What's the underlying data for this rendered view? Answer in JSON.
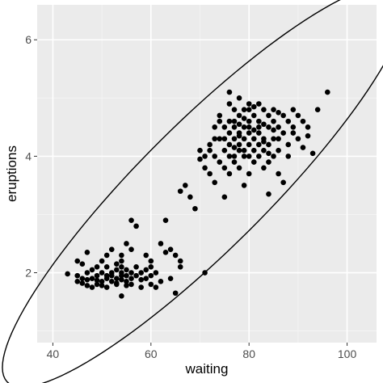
{
  "chart_data": {
    "type": "scatter",
    "xlabel": "waiting",
    "ylabel": "eruptions",
    "xlim": [
      36.8,
      106.0
    ],
    "ylim": [
      0.8,
      6.6
    ],
    "x_ticks": [
      40,
      60,
      80,
      100
    ],
    "y_ticks": [
      2,
      4,
      6
    ],
    "grid": true,
    "panel_color": "#ebebeb",
    "point_color": "#000000",
    "ellipse": {
      "type": "confidence-ellipse",
      "center": [
        70.9,
        3.49
      ],
      "cov": [
        [
          184.8,
          13.98
        ],
        [
          13.98,
          1.3
        ]
      ],
      "scale": 3.03
    },
    "points": [
      [
        43,
        1.98
      ],
      [
        45,
        2.2
      ],
      [
        45,
        1.95
      ],
      [
        45,
        1.85
      ],
      [
        46,
        1.82
      ],
      [
        46,
        1.9
      ],
      [
        46,
        2.15
      ],
      [
        47,
        1.78
      ],
      [
        47,
        2.0
      ],
      [
        47,
        2.35
      ],
      [
        47,
        1.88
      ],
      [
        48,
        1.75
      ],
      [
        48,
        2.05
      ],
      [
        48,
        1.9
      ],
      [
        49,
        1.8
      ],
      [
        49,
        2.1
      ],
      [
        49,
        1.95
      ],
      [
        49,
        1.87
      ],
      [
        50,
        1.78
      ],
      [
        50,
        2.2
      ],
      [
        50,
        2.0
      ],
      [
        50,
        1.85
      ],
      [
        51,
        2.3
      ],
      [
        51,
        1.95
      ],
      [
        51,
        1.75
      ],
      [
        51,
        2.1
      ],
      [
        51,
        1.9
      ],
      [
        52,
        2.4
      ],
      [
        52,
        1.85
      ],
      [
        52,
        2.0
      ],
      [
        52,
        1.95
      ],
      [
        53,
        1.8
      ],
      [
        53,
        2.15
      ],
      [
        53,
        1.9
      ],
      [
        53,
        2.05
      ],
      [
        53,
        1.82
      ],
      [
        54,
        1.6
      ],
      [
        54,
        2.0
      ],
      [
        54,
        2.3
      ],
      [
        54,
        1.88
      ],
      [
        54,
        1.95
      ],
      [
        54,
        2.1
      ],
      [
        54,
        2.2
      ],
      [
        55,
        2.05
      ],
      [
        55,
        1.85
      ],
      [
        55,
        2.5
      ],
      [
        55,
        1.78
      ],
      [
        55,
        1.95
      ],
      [
        56,
        2.9
      ],
      [
        56,
        2.0
      ],
      [
        56,
        1.9
      ],
      [
        56,
        2.4
      ],
      [
        56,
        1.8
      ],
      [
        57,
        2.8
      ],
      [
        57,
        1.95
      ],
      [
        57,
        2.1
      ],
      [
        58,
        1.75
      ],
      [
        58,
        2.0
      ],
      [
        58,
        1.88
      ],
      [
        59,
        2.05
      ],
      [
        59,
        1.9
      ],
      [
        59,
        2.3
      ],
      [
        60,
        1.8
      ],
      [
        60,
        1.95
      ],
      [
        60,
        2.2
      ],
      [
        60,
        2.1
      ],
      [
        61,
        1.75
      ],
      [
        61,
        2.0
      ],
      [
        62,
        2.5
      ],
      [
        62,
        1.85
      ],
      [
        63,
        2.9
      ],
      [
        63,
        2.35
      ],
      [
        64,
        2.4
      ],
      [
        64,
        1.9
      ],
      [
        65,
        1.65
      ],
      [
        65,
        2.3
      ],
      [
        66,
        2.1
      ],
      [
        66,
        3.4
      ],
      [
        66,
        2.2
      ],
      [
        67,
        3.5
      ],
      [
        68,
        3.3
      ],
      [
        69,
        3.1
      ],
      [
        70,
        4.1
      ],
      [
        70,
        3.95
      ],
      [
        71,
        4.0
      ],
      [
        71,
        3.8
      ],
      [
        71,
        2.0
      ],
      [
        72,
        4.2
      ],
      [
        72,
        4.1
      ],
      [
        72,
        3.7
      ],
      [
        73,
        4.3
      ],
      [
        73,
        4.0
      ],
      [
        73,
        4.5
      ],
      [
        73,
        3.55
      ],
      [
        74,
        4.6
      ],
      [
        74,
        4.3
      ],
      [
        74,
        3.9
      ],
      [
        74,
        4.7
      ],
      [
        75,
        4.3
      ],
      [
        75,
        4.1
      ],
      [
        75,
        4.5
      ],
      [
        75,
        3.3
      ],
      [
        75,
        3.8
      ],
      [
        76,
        4.6
      ],
      [
        76,
        4.4
      ],
      [
        76,
        4.0
      ],
      [
        76,
        5.1
      ],
      [
        76,
        3.7
      ],
      [
        76,
        4.2
      ],
      [
        77,
        4.5
      ],
      [
        77,
        4.3
      ],
      [
        77,
        4.8
      ],
      [
        77,
        4.0
      ],
      [
        77,
        4.6
      ],
      [
        77,
        3.9
      ],
      [
        78,
        4.7
      ],
      [
        78,
        4.4
      ],
      [
        78,
        4.2
      ],
      [
        78,
        5.0
      ],
      [
        78,
        4.1
      ],
      [
        78,
        3.8
      ],
      [
        78,
        4.55
      ],
      [
        79,
        4.5
      ],
      [
        79,
        4.3
      ],
      [
        79,
        4.8
      ],
      [
        79,
        4.0
      ],
      [
        79,
        4.65
      ],
      [
        79,
        3.5
      ],
      [
        80,
        4.6
      ],
      [
        80,
        4.4
      ],
      [
        80,
        4.2
      ],
      [
        80,
        4.9
      ],
      [
        80,
        4.0
      ],
      [
        80,
        3.7
      ],
      [
        80,
        4.5
      ],
      [
        81,
        4.7
      ],
      [
        81,
        4.3
      ],
      [
        81,
        4.1
      ],
      [
        81,
        4.85
      ],
      [
        81,
        3.9
      ],
      [
        82,
        4.5
      ],
      [
        82,
        4.2
      ],
      [
        82,
        4.6
      ],
      [
        82,
        4.0
      ],
      [
        82,
        4.4
      ],
      [
        83,
        4.8
      ],
      [
        83,
        4.3
      ],
      [
        83,
        4.55
      ],
      [
        83,
        3.8
      ],
      [
        83,
        4.1
      ],
      [
        84,
        4.5
      ],
      [
        84,
        4.2
      ],
      [
        84,
        4.7
      ],
      [
        84,
        3.9
      ],
      [
        84,
        3.35
      ],
      [
        85,
        4.6
      ],
      [
        85,
        4.3
      ],
      [
        85,
        4.0
      ],
      [
        85,
        4.8
      ],
      [
        86,
        4.1
      ],
      [
        86,
        4.5
      ],
      [
        86,
        3.7
      ],
      [
        86,
        4.3
      ],
      [
        87,
        4.7
      ],
      [
        87,
        4.4
      ],
      [
        87,
        3.55
      ],
      [
        88,
        4.6
      ],
      [
        88,
        4.0
      ],
      [
        88,
        4.2
      ],
      [
        89,
        4.5
      ],
      [
        89,
        4.4
      ],
      [
        89,
        4.8
      ],
      [
        90,
        4.7
      ],
      [
        90,
        4.3
      ],
      [
        91,
        4.6
      ],
      [
        91,
        4.15
      ],
      [
        92,
        4.35
      ],
      [
        92,
        4.5
      ],
      [
        93,
        4.05
      ],
      [
        94,
        4.8
      ],
      [
        96,
        5.1
      ],
      [
        76,
        4.9
      ],
      [
        79,
        4.1
      ],
      [
        81,
        4.45
      ],
      [
        78,
        4.35
      ],
      [
        83,
        4.25
      ],
      [
        85,
        4.45
      ],
      [
        86,
        4.75
      ],
      [
        77,
        4.15
      ],
      [
        80,
        4.8
      ],
      [
        82,
        4.9
      ],
      [
        84,
        4.05
      ]
    ]
  }
}
